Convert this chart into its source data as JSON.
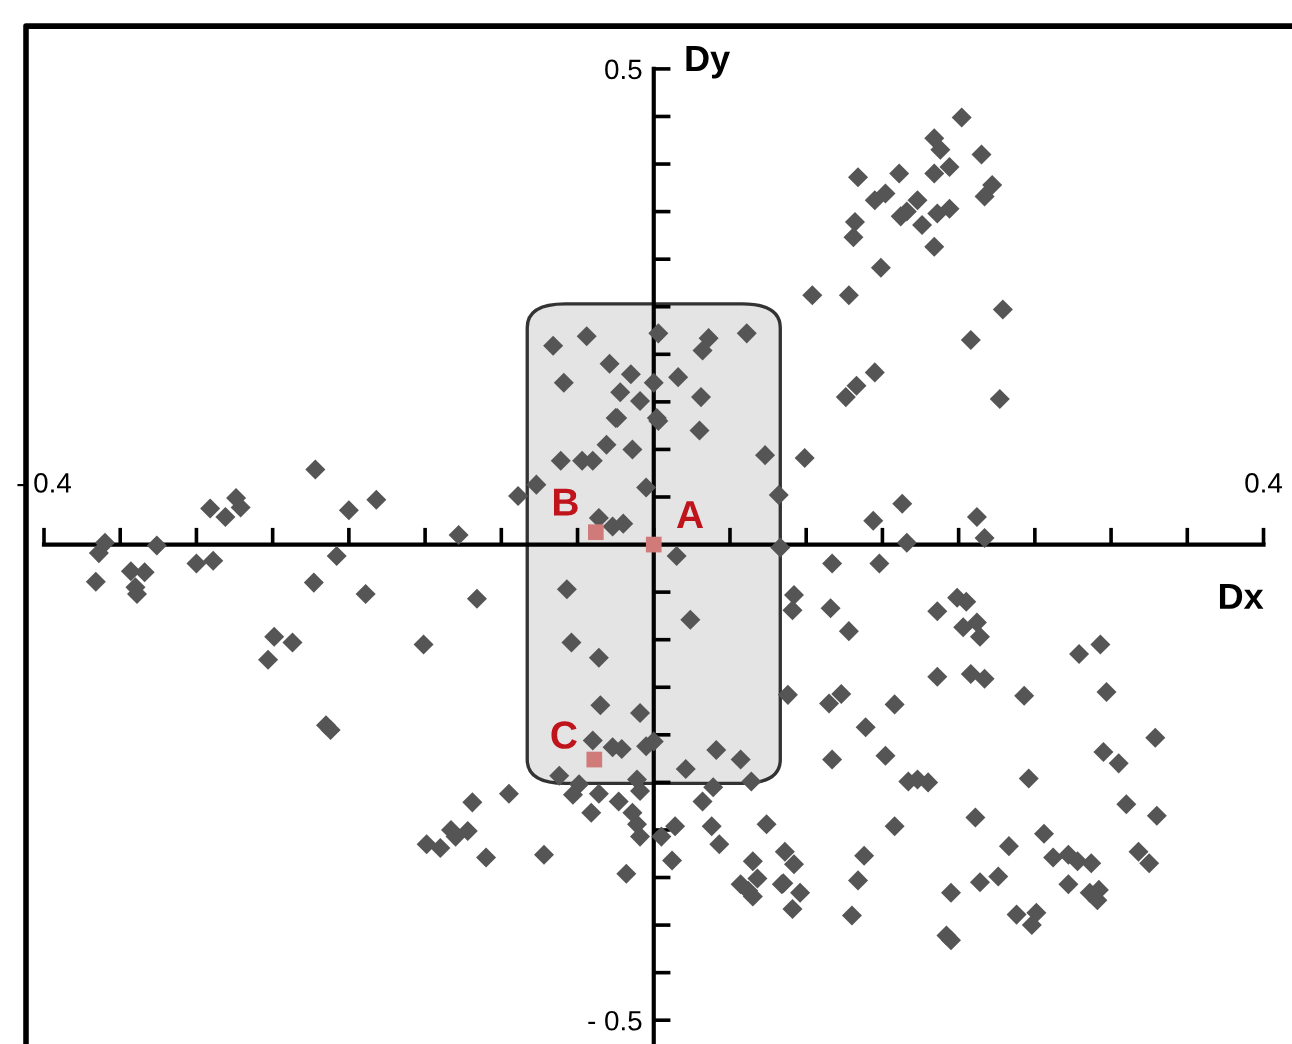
{
  "chart_data": {
    "type": "scatter",
    "xlabel": "Dx",
    "ylabel": "Dy",
    "xlim": [
      -0.4,
      0.42
    ],
    "ylim": [
      -0.525,
      0.545
    ],
    "xticks": [
      {
        "value": -0.4,
        "label": "- 0.4"
      },
      {
        "value": -0.35,
        "label": null
      },
      {
        "value": -0.3,
        "label": null
      },
      {
        "value": -0.25,
        "label": null
      },
      {
        "value": -0.2,
        "label": null
      },
      {
        "value": -0.15,
        "label": null
      },
      {
        "value": -0.1,
        "label": null
      },
      {
        "value": -0.05,
        "label": null
      },
      {
        "value": 0,
        "label": null
      },
      {
        "value": 0.05,
        "label": null
      },
      {
        "value": 0.1,
        "label": null
      },
      {
        "value": 0.15,
        "label": null
      },
      {
        "value": 0.2,
        "label": null
      },
      {
        "value": 0.25,
        "label": null
      },
      {
        "value": 0.3,
        "label": null
      },
      {
        "value": 0.35,
        "label": null
      },
      {
        "value": 0.4,
        "label": "0.4"
      }
    ],
    "yticks": [
      {
        "value": -0.5,
        "label": "- 0.5"
      },
      {
        "value": -0.45,
        "label": null
      },
      {
        "value": -0.4,
        "label": null
      },
      {
        "value": -0.35,
        "label": null
      },
      {
        "value": -0.3,
        "label": null
      },
      {
        "value": -0.25,
        "label": null
      },
      {
        "value": -0.2,
        "label": null
      },
      {
        "value": -0.15,
        "label": null
      },
      {
        "value": -0.1,
        "label": null
      },
      {
        "value": -0.05,
        "label": null
      },
      {
        "value": 0.05,
        "label": null
      },
      {
        "value": 0.1,
        "label": null
      },
      {
        "value": 0.15,
        "label": null
      },
      {
        "value": 0.2,
        "label": null
      },
      {
        "value": 0.25,
        "label": null
      },
      {
        "value": 0.3,
        "label": null
      },
      {
        "value": 0.35,
        "label": null
      },
      {
        "value": 0.4,
        "label": null
      },
      {
        "value": 0.45,
        "label": null
      },
      {
        "value": 0.5,
        "label": "0.5"
      }
    ],
    "grid": false,
    "legend": false,
    "series": [
      {
        "color": "#555555",
        "marker": "diamond",
        "x": [
          -0.222,
          -0.291,
          -0.281,
          -0.274,
          -0.271,
          -0.2,
          -0.182,
          -0.36,
          -0.364,
          -0.326,
          -0.366,
          -0.343,
          -0.334,
          -0.34,
          -0.339,
          -0.3,
          -0.289,
          -0.208,
          -0.223,
          -0.189,
          -0.128,
          -0.116,
          -0.249,
          -0.237,
          -0.253,
          -0.151,
          -0.089,
          -0.077,
          -0.061,
          -0.047,
          -0.04,
          -0.025,
          -0.031,
          -0.014,
          -0.036,
          -0.027,
          -0.02,
          -0.057,
          -0.054,
          -0.036,
          0.003,
          0.073,
          0.099,
          0.082,
          0.163,
          0.144,
          0.212,
          0.217,
          0.166,
          0.083,
          0.015,
          0.117,
          0.148,
          0.092,
          0.091,
          0.116,
          0.024,
          0.128,
          0.186,
          0.199,
          0.205,
          0.203,
          0.212,
          0.214,
          0.279,
          0.293,
          -0.066,
          -0.044,
          0.003,
          0.036,
          0.032,
          0.061,
          -0.029,
          -0.015,
          -0.059,
          0.0,
          0.016,
          -0.022,
          -0.009,
          0.031,
          -0.024,
          0.002,
          0.03,
          -0.005,
          0.202,
          0.184,
          0.188,
          0.215,
          0.134,
          0.161,
          0.184,
          0.194,
          0.145,
          0.152,
          0.173,
          0.162,
          0.166,
          0.186,
          0.194,
          0.217,
          0.222,
          0.132,
          0.131,
          0.176,
          0.184,
          0.149,
          0.104,
          0.128,
          0.229,
          0.208,
          0.145,
          0.133,
          0.126,
          0.227,
          -0.215,
          -0.212,
          -0.035,
          -0.009,
          -0.04,
          -0.027,
          -0.021,
          -0.005,
          0.0,
          0.041,
          0.057,
          0.021,
          0.088,
          -0.062,
          -0.049,
          -0.053,
          -0.036,
          -0.011,
          -0.009,
          0.039,
          0.064,
          0.032,
          -0.023,
          -0.041,
          -0.014,
          -0.011,
          -0.009,
          0.005,
          0.014,
          0.038,
          0.043,
          0.074,
          0.012,
          -0.018,
          0.065,
          0.057,
          0.062,
          0.065,
          0.068,
          0.085,
          0.091,
          0.086,
          0.092,
          -0.119,
          -0.095,
          -0.149,
          -0.14,
          -0.133,
          -0.13,
          -0.122,
          -0.11,
          -0.072,
          0.186,
          0.208,
          0.217,
          0.243,
          0.297,
          0.115,
          0.123,
          0.158,
          0.139,
          0.329,
          0.295,
          0.305,
          0.117,
          0.152,
          0.167,
          0.173,
          0.18,
          0.246,
          0.31,
          0.33,
          0.158,
          0.211,
          0.256,
          0.233,
          0.138,
          0.262,
          0.272,
          0.278,
          0.287,
          0.318,
          0.325,
          0.134,
          0.084,
          0.096,
          0.214,
          0.226,
          0.272,
          0.286,
          0.292,
          0.291,
          0.195,
          0.13,
          0.238,
          0.251,
          0.248,
          0.192,
          0.195
        ],
        "values": [
          0.079,
          0.038,
          0.029,
          0.049,
          0.039,
          0.036,
          0.047,
          0.002,
          -0.009,
          -0.001,
          -0.039,
          -0.028,
          -0.029,
          -0.045,
          -0.052,
          -0.02,
          -0.017,
          -0.012,
          -0.04,
          -0.052,
          0.01,
          -0.057,
          -0.097,
          -0.103,
          -0.121,
          -0.105,
          0.051,
          0.063,
          0.088,
          0.088,
          0.088,
          0.133,
          0.105,
          0.1,
          0.028,
          0.019,
          0.022,
          -0.047,
          -0.103,
          -0.119,
          0.13,
          0.094,
          0.091,
          0.052,
          0.043,
          0.025,
          0.029,
          0.007,
          0.002,
          -0.003,
          -0.012,
          -0.02,
          -0.02,
          -0.053,
          -0.069,
          -0.067,
          -0.079,
          -0.091,
          -0.07,
          -0.056,
          -0.06,
          -0.087,
          -0.082,
          -0.097,
          -0.115,
          -0.105,
          0.209,
          0.219,
          0.222,
          0.217,
          0.204,
          0.222,
          0.19,
          0.179,
          0.17,
          0.17,
          0.176,
          0.16,
          0.151,
          0.155,
          0.133,
          0.133,
          0.12,
          0.06,
          0.449,
          0.427,
          0.415,
          0.41,
          0.386,
          0.39,
          0.39,
          0.397,
          0.362,
          0.369,
          0.362,
          0.345,
          0.35,
          0.348,
          0.353,
          0.366,
          0.378,
          0.339,
          0.323,
          0.336,
          0.313,
          0.291,
          0.262,
          0.262,
          0.247,
          0.215,
          0.181,
          0.167,
          0.155,
          0.153,
          -0.19,
          -0.195,
          -0.169,
          -0.177,
          -0.206,
          -0.213,
          -0.215,
          -0.212,
          -0.207,
          -0.216,
          -0.226,
          -0.236,
          -0.158,
          -0.243,
          -0.252,
          -0.263,
          -0.262,
          -0.247,
          -0.259,
          -0.255,
          -0.249,
          -0.27,
          -0.27,
          -0.282,
          -0.282,
          -0.294,
          -0.307,
          -0.307,
          -0.296,
          -0.296,
          -0.315,
          -0.294,
          -0.332,
          -0.346,
          -0.333,
          -0.357,
          -0.364,
          -0.37,
          -0.351,
          -0.356,
          -0.383,
          -0.323,
          -0.336,
          -0.271,
          -0.262,
          -0.315,
          -0.319,
          -0.3,
          -0.307,
          -0.301,
          -0.329,
          -0.326,
          -0.139,
          -0.136,
          -0.141,
          -0.159,
          -0.155,
          -0.167,
          -0.157,
          -0.168,
          -0.192,
          -0.203,
          -0.218,
          -0.23,
          -0.226,
          -0.222,
          -0.249,
          -0.247,
          -0.25,
          -0.246,
          -0.273,
          -0.285,
          -0.296,
          -0.287,
          -0.304,
          -0.317,
          -0.327,
          -0.329,
          -0.326,
          -0.333,
          -0.335,
          -0.323,
          -0.335,
          -0.353,
          -0.357,
          -0.366,
          -0.355,
          -0.349,
          -0.357,
          -0.366,
          -0.363,
          -0.374,
          -0.366,
          -0.39,
          -0.389,
          -0.387,
          -0.4,
          -0.411,
          -0.416
        ]
      },
      {
        "color": "#d07a7a",
        "marker": "square",
        "x": [
          0.0,
          -0.038,
          -0.039
        ],
        "values": [
          0.0,
          0.013,
          -0.226
        ]
      }
    ],
    "annotations": [
      {
        "text": "A",
        "x": 0.0,
        "y": 0.0
      },
      {
        "text": "B",
        "x": -0.038,
        "y": 0.013
      },
      {
        "text": "C",
        "x": -0.039,
        "y": -0.226
      }
    ]
  }
}
